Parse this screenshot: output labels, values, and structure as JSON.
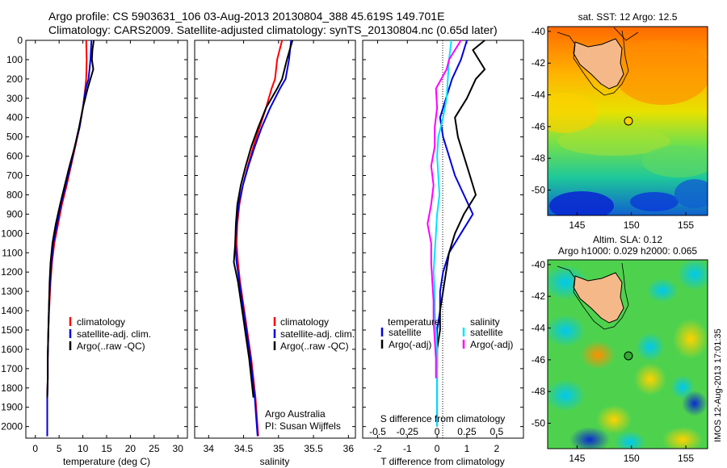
{
  "title": {
    "line1": "Argo profile: CS 5903631_106 03-Aug-2013 20130804_388 45.619S 149.701E",
    "line2": "Climatology: CARS2009. Satellite-adjusted climatology: synTS_20130804.nc (0.65d later)"
  },
  "colors": {
    "climatology": "#ff0000",
    "satellite": "#0000dd",
    "argo": "#000000",
    "sal_satellite": "#00e5ff",
    "sal_argo": "#ff00ff"
  },
  "depth_ticks": [
    "0",
    "100",
    "200",
    "300",
    "400",
    "500",
    "600",
    "700",
    "800",
    "900",
    "1000",
    "1100",
    "1200",
    "1300",
    "1400",
    "1500",
    "1600",
    "1700",
    "1800",
    "1900",
    "2000"
  ],
  "temperature_panel": {
    "xlabel": "temperature (deg C)",
    "xticks": [
      "0",
      "5",
      "10",
      "15",
      "20",
      "25",
      "30"
    ],
    "legend": [
      "climatology",
      "satellite-adj. clim.",
      "Argo(..raw -QC)"
    ]
  },
  "salinity_panel": {
    "xlabel": "salinity",
    "xticks": [
      "34",
      "34.5",
      "35",
      "35.5",
      "36"
    ],
    "legend": [
      "climatology",
      "satellite-adj. clim.",
      "Argo(..raw -QC)"
    ],
    "note1": "Argo Australia",
    "note2": "PI: Susan Wijffels"
  },
  "difference_panel": {
    "xlabel": "T difference from climatology",
    "top_xlabel": "S difference from climatology",
    "xticks": [
      "-2",
      "-1",
      "0",
      "1",
      "2"
    ],
    "sticks": [
      "-0.5",
      "-0.25",
      "0",
      "0.25",
      "0.5"
    ],
    "legend_t_title": "temperature",
    "legend_s_title": "salinity",
    "legend_t": [
      "satellite",
      "Argo(-adj)"
    ],
    "legend_s": [
      "satellite",
      "Argo(-adj)"
    ]
  },
  "map_top": {
    "title": "sat. SST: 12 Argo: 12.5",
    "yticks": [
      "-40",
      "-42",
      "-44",
      "-46",
      "-48",
      "-50"
    ],
    "xticks": [
      "145",
      "150",
      "155"
    ]
  },
  "map_bottom": {
    "title1": "Altim. SLA: 0.12",
    "title2": "Argo h1000: 0.029 h2000: 0.065",
    "yticks": [
      "-40",
      "-42",
      "-44",
      "-46",
      "-48",
      "-50"
    ],
    "xticks": [
      "145",
      "150",
      "155"
    ]
  },
  "stamp": "IMOS 12-Aug-2013 17:01:35",
  "chart_data": [
    {
      "type": "line",
      "title": "",
      "xlabel": "temperature (deg C)",
      "ylabel": "",
      "xlim": [
        -2,
        32
      ],
      "ylim": [
        2060,
        0
      ],
      "series": [
        {
          "name": "climatology",
          "x": [
            10.7,
            10.8,
            10.7,
            10.5,
            10.0,
            9.3,
            8.4,
            7.5,
            6.6,
            5.6,
            4.8,
            4.0,
            3.5,
            3.2,
            3.0,
            2.8,
            2.7,
            2.6,
            2.6,
            2.5,
            2.5,
            2.5
          ],
          "y": [
            0,
            100,
            200,
            250,
            350,
            450,
            550,
            650,
            750,
            850,
            950,
            1050,
            1150,
            1250,
            1350,
            1450,
            1550,
            1650,
            1750,
            1850,
            1950,
            2050
          ]
        },
        {
          "name": "satellite-adj. clim.",
          "x": [
            11.8,
            11.6,
            11.2,
            10.6,
            10.0,
            9.3,
            8.3,
            7.4,
            6.4,
            5.4,
            4.6,
            3.8,
            3.4,
            3.1,
            2.9,
            2.8,
            2.7,
            2.6,
            2.6,
            2.5,
            2.5,
            2.5
          ],
          "y": [
            0,
            100,
            200,
            250,
            350,
            450,
            550,
            650,
            750,
            850,
            950,
            1050,
            1150,
            1250,
            1350,
            1450,
            1550,
            1650,
            1750,
            1850,
            1950,
            2050
          ]
        },
        {
          "name": "Argo(..raw -QC)",
          "x": [
            12.3,
            12.0,
            11.9,
            12.2,
            11.0,
            10.0,
            9.2,
            8.3,
            7.2,
            6.2,
            5.2,
            4.3,
            3.6,
            3.2,
            3.0,
            2.9,
            2.8,
            2.7,
            2.6,
            2.6,
            2.5
          ],
          "y": [
            0,
            50,
            100,
            150,
            250,
            350,
            450,
            550,
            650,
            750,
            850,
            950,
            1050,
            1150,
            1250,
            1350,
            1450,
            1550,
            1650,
            1750,
            1850
          ]
        }
      ]
    },
    {
      "type": "line",
      "title": "",
      "xlabel": "salinity",
      "ylabel": "",
      "xlim": [
        33.8,
        36.1
      ],
      "ylim": [
        2060,
        0
      ],
      "series": [
        {
          "name": "climatology",
          "x": [
            35.05,
            34.98,
            34.95,
            34.9,
            34.82,
            34.73,
            34.64,
            34.56,
            34.49,
            34.44,
            34.41,
            34.4,
            34.42,
            34.45,
            34.49,
            34.53,
            34.57,
            34.61,
            34.64,
            34.67,
            34.69,
            34.71
          ],
          "y": [
            0,
            100,
            200,
            250,
            350,
            450,
            550,
            650,
            750,
            850,
            950,
            1050,
            1150,
            1250,
            1350,
            1450,
            1550,
            1650,
            1750,
            1850,
            1950,
            2050
          ]
        },
        {
          "name": "satellite-adj. clim.",
          "x": [
            35.18,
            35.15,
            35.1,
            35.02,
            34.88,
            34.76,
            34.66,
            34.57,
            34.49,
            34.43,
            34.4,
            34.38,
            34.4,
            34.44,
            34.48,
            34.52,
            34.56,
            34.6,
            34.63,
            34.66,
            34.68,
            34.7
          ],
          "y": [
            0,
            100,
            200,
            250,
            350,
            450,
            550,
            650,
            750,
            850,
            950,
            1050,
            1150,
            1250,
            1350,
            1450,
            1550,
            1650,
            1750,
            1850,
            1950,
            2050
          ]
        },
        {
          "name": "Argo(..raw -QC)",
          "x": [
            35.2,
            35.12,
            35.05,
            34.98,
            34.82,
            34.71,
            34.61,
            34.53,
            34.46,
            34.41,
            34.39,
            34.38,
            34.36,
            34.42,
            34.46,
            34.5,
            34.54,
            34.58,
            34.61,
            34.64
          ],
          "y": [
            0,
            100,
            200,
            250,
            350,
            450,
            550,
            650,
            750,
            850,
            950,
            1050,
            1150,
            1250,
            1350,
            1450,
            1550,
            1650,
            1750,
            1850
          ]
        }
      ]
    },
    {
      "type": "line",
      "title": "",
      "xlabel": "T difference from climatology",
      "ylabel": "",
      "xlim": [
        -2.5,
        2.9
      ],
      "ylim": [
        2060,
        0
      ],
      "series": [
        {
          "name": "temperature satellite",
          "x": [
            1.0,
            0.8,
            0.5,
            0.3,
            0.1,
            0.2,
            0.4,
            0.6,
            0.9,
            1.2,
            0.8,
            0.4,
            0.2,
            0.1,
            0.1,
            0.0,
            0.0,
            0.0,
            0.0,
            0.0,
            0.0
          ],
          "y": [
            0,
            100,
            200,
            300,
            400,
            500,
            600,
            700,
            800,
            900,
            1000,
            1100,
            1200,
            1300,
            1400,
            1500,
            1600,
            1700,
            1800,
            1900,
            2000
          ]
        },
        {
          "name": "temperature Argo(-adj)",
          "x": [
            1.6,
            1.2,
            1.4,
            1.6,
            1.3,
            1.0,
            0.6,
            0.7,
            0.9,
            1.1,
            1.3,
            0.9,
            0.6,
            0.4,
            0.3,
            0.2,
            0.1,
            0.1,
            0.0,
            0.0
          ],
          "y": [
            0,
            50,
            100,
            150,
            200,
            300,
            400,
            500,
            600,
            700,
            800,
            900,
            1000,
            1100,
            1200,
            1300,
            1400,
            1500,
            1600,
            1700
          ]
        },
        {
          "name": "salinity satellite",
          "x": [
            0.12,
            0.1,
            0.09,
            0.08,
            0.05,
            0.01,
            0.0,
            0.01,
            0.02,
            0.0,
            -0.01,
            -0.02,
            -0.03,
            -0.02,
            -0.02,
            -0.01,
            0.0,
            0.0,
            0.0,
            0.0,
            0.0
          ],
          "y": [
            0,
            100,
            200,
            300,
            400,
            500,
            600,
            700,
            800,
            900,
            1000,
            1100,
            1200,
            1300,
            1400,
            1500,
            1600,
            1700,
            1800,
            1900,
            2000
          ]
        },
        {
          "name": "salinity Argo(-adj)",
          "x": [
            0.2,
            0.15,
            0.1,
            0.08,
            -0.01,
            0.0,
            -0.02,
            -0.02,
            -0.05,
            -0.03,
            -0.05,
            -0.08,
            -0.05,
            -0.05,
            -0.04,
            -0.03,
            -0.03,
            -0.02,
            -0.01,
            -0.01
          ],
          "y": [
            0,
            50,
            100,
            150,
            250,
            350,
            450,
            550,
            650,
            750,
            850,
            950,
            1050,
            1150,
            1250,
            1350,
            1450,
            1550,
            1650,
            1750
          ]
        }
      ]
    }
  ]
}
